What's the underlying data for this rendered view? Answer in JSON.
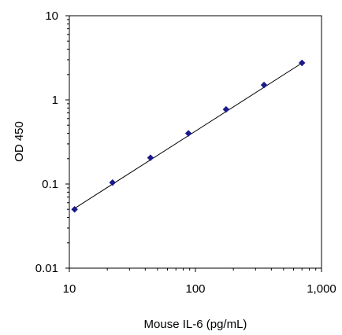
{
  "chart_data": {
    "type": "scatter",
    "title": "",
    "xlabel": "Mouse IL-6  (pg/mL)",
    "ylabel": "OD 450",
    "xscale": "log",
    "yscale": "log",
    "xlim": [
      10,
      1000
    ],
    "ylim": [
      0.01,
      10
    ],
    "x_ticks": [
      10,
      100,
      1000
    ],
    "x_tick_labels": [
      "10",
      "100",
      "1,000"
    ],
    "y_ticks": [
      0.01,
      0.1,
      1,
      10
    ],
    "y_tick_labels": [
      "0.01",
      "0.1",
      "1",
      "10"
    ],
    "grid": false,
    "legend": "none",
    "series": [
      {
        "x": [
          11,
          22,
          44,
          88,
          175,
          350,
          700
        ],
        "y": [
          0.05,
          0.104,
          0.205,
          0.4,
          0.77,
          1.5,
          2.75
        ],
        "marker": "diamond",
        "color": "#1a1a8c"
      }
    ],
    "fit_line": {
      "x": [
        11,
        700
      ],
      "y": [
        0.0513,
        2.74
      ],
      "color": "#000000"
    }
  }
}
